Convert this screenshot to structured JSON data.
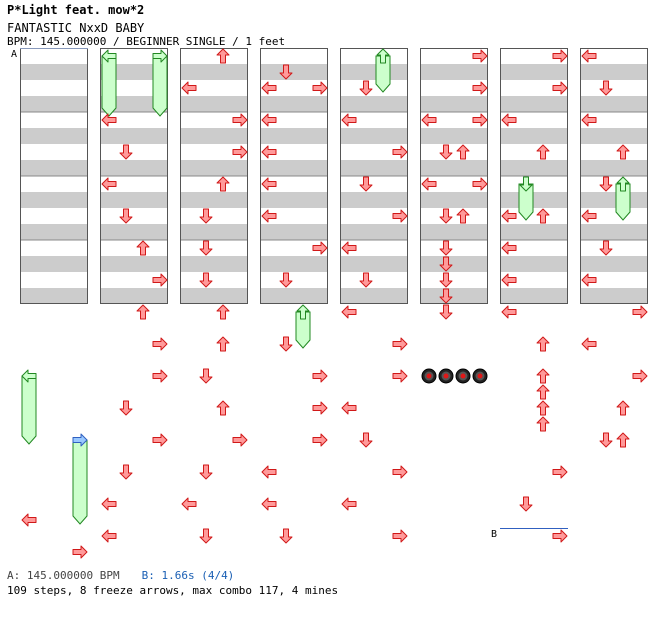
{
  "header": {
    "artist": "P*Light feat. mow*2",
    "title": "FANTASTIC NxxD BABY",
    "info": "BPM: 145.000000 / BEGINNER SINGLE / 1 feet"
  },
  "footer": {
    "bpm_text": "A: 145.000000 BPM",
    "stop_text": "B: 1.66s (4/4)",
    "stats_text": "109 steps, 8 freeze arrows, max combo 117, 4 mines"
  },
  "colors": {
    "tap": "#ff9a9a",
    "tap_stroke": "#d01818",
    "freeze": "#ccffcc",
    "freeze_stroke": "#228822",
    "stop_arrow": "#99c8ff",
    "stop_line": "#3060c0",
    "stripe": "#cccccc"
  },
  "markers": [
    {
      "label": "A",
      "col": 0,
      "beat": 0
    },
    {
      "label": "B",
      "col": 6,
      "beat": 30
    }
  ],
  "chart_data": {
    "type": "step-chart",
    "lanes": [
      "left",
      "down",
      "up",
      "right"
    ],
    "columns": 8,
    "measures_per_column": 4,
    "beats_per_measure": 4,
    "notes": [
      {
        "col": 0,
        "beat": 20,
        "lane": 0,
        "type": "freeze",
        "len": 4
      },
      {
        "col": 0,
        "beat": 24,
        "lane": 3,
        "type": "freeze",
        "len": 5,
        "stop": true
      },
      {
        "col": 0,
        "beat": 29,
        "lane": 0,
        "type": "tap"
      },
      {
        "col": 0,
        "beat": 31,
        "lane": 3,
        "type": "tap"
      },
      {
        "col": 1,
        "beat": 0,
        "lane": 0,
        "type": "freeze",
        "len": 3.5
      },
      {
        "col": 1,
        "beat": 0,
        "lane": 3,
        "type": "freeze",
        "len": 3.5
      },
      {
        "col": 1,
        "beat": 4,
        "lane": 0,
        "type": "tap"
      },
      {
        "col": 1,
        "beat": 6,
        "lane": 1,
        "type": "tap"
      },
      {
        "col": 1,
        "beat": 8,
        "lane": 0,
        "type": "tap"
      },
      {
        "col": 1,
        "beat": 10,
        "lane": 1,
        "type": "tap"
      },
      {
        "col": 1,
        "beat": 12,
        "lane": 2,
        "type": "tap"
      },
      {
        "col": 1,
        "beat": 14,
        "lane": 3,
        "type": "tap"
      },
      {
        "col": 1,
        "beat": 16,
        "lane": 2,
        "type": "tap"
      },
      {
        "col": 1,
        "beat": 18,
        "lane": 3,
        "type": "tap"
      },
      {
        "col": 1,
        "beat": 20,
        "lane": 3,
        "type": "tap"
      },
      {
        "col": 1,
        "beat": 22,
        "lane": 1,
        "type": "tap"
      },
      {
        "col": 1,
        "beat": 24,
        "lane": 3,
        "type": "tap"
      },
      {
        "col": 1,
        "beat": 26,
        "lane": 1,
        "type": "tap"
      },
      {
        "col": 1,
        "beat": 28,
        "lane": 0,
        "type": "tap"
      },
      {
        "col": 1,
        "beat": 30,
        "lane": 0,
        "type": "tap"
      },
      {
        "col": 2,
        "beat": 0,
        "lane": 2,
        "type": "tap"
      },
      {
        "col": 2,
        "beat": 2,
        "lane": 0,
        "type": "tap"
      },
      {
        "col": 2,
        "beat": 4,
        "lane": 3,
        "type": "tap"
      },
      {
        "col": 2,
        "beat": 6,
        "lane": 3,
        "type": "tap"
      },
      {
        "col": 2,
        "beat": 8,
        "lane": 2,
        "type": "tap"
      },
      {
        "col": 2,
        "beat": 10,
        "lane": 1,
        "type": "tap"
      },
      {
        "col": 2,
        "beat": 12,
        "lane": 1,
        "type": "tap"
      },
      {
        "col": 2,
        "beat": 14,
        "lane": 1,
        "type": "tap"
      },
      {
        "col": 2,
        "beat": 16,
        "lane": 2,
        "type": "tap"
      },
      {
        "col": 2,
        "beat": 18,
        "lane": 2,
        "type": "tap"
      },
      {
        "col": 2,
        "beat": 20,
        "lane": 1,
        "type": "tap"
      },
      {
        "col": 2,
        "beat": 22,
        "lane": 2,
        "type": "tap"
      },
      {
        "col": 2,
        "beat": 24,
        "lane": 3,
        "type": "tap"
      },
      {
        "col": 2,
        "beat": 26,
        "lane": 1,
        "type": "tap"
      },
      {
        "col": 2,
        "beat": 28,
        "lane": 0,
        "type": "tap"
      },
      {
        "col": 2,
        "beat": 30,
        "lane": 1,
        "type": "tap"
      },
      {
        "col": 3,
        "beat": 1,
        "lane": 1,
        "type": "tap"
      },
      {
        "col": 3,
        "beat": 2,
        "lane": 0,
        "type": "tap"
      },
      {
        "col": 3,
        "beat": 2,
        "lane": 3,
        "type": "tap"
      },
      {
        "col": 3,
        "beat": 4,
        "lane": 0,
        "type": "tap"
      },
      {
        "col": 3,
        "beat": 6,
        "lane": 0,
        "type": "tap"
      },
      {
        "col": 3,
        "beat": 8,
        "lane": 0,
        "type": "tap"
      },
      {
        "col": 3,
        "beat": 10,
        "lane": 0,
        "type": "tap"
      },
      {
        "col": 3,
        "beat": 12,
        "lane": 3,
        "type": "tap"
      },
      {
        "col": 3,
        "beat": 14,
        "lane": 1,
        "type": "tap"
      },
      {
        "col": 3,
        "beat": 16,
        "lane": 2,
        "type": "freeze",
        "len": 2
      },
      {
        "col": 3,
        "beat": 18,
        "lane": 1,
        "type": "tap"
      },
      {
        "col": 3,
        "beat": 20,
        "lane": 3,
        "type": "tap"
      },
      {
        "col": 3,
        "beat": 22,
        "lane": 3,
        "type": "tap"
      },
      {
        "col": 3,
        "beat": 24,
        "lane": 3,
        "type": "tap"
      },
      {
        "col": 3,
        "beat": 26,
        "lane": 0,
        "type": "tap"
      },
      {
        "col": 3,
        "beat": 28,
        "lane": 0,
        "type": "tap"
      },
      {
        "col": 3,
        "beat": 30,
        "lane": 1,
        "type": "tap"
      },
      {
        "col": 4,
        "beat": 0,
        "lane": 2,
        "type": "freeze",
        "len": 2
      },
      {
        "col": 4,
        "beat": 2,
        "lane": 1,
        "type": "tap"
      },
      {
        "col": 4,
        "beat": 4,
        "lane": 0,
        "type": "tap"
      },
      {
        "col": 4,
        "beat": 6,
        "lane": 3,
        "type": "tap"
      },
      {
        "col": 4,
        "beat": 8,
        "lane": 1,
        "type": "tap"
      },
      {
        "col": 4,
        "beat": 10,
        "lane": 3,
        "type": "tap"
      },
      {
        "col": 4,
        "beat": 12,
        "lane": 0,
        "type": "tap"
      },
      {
        "col": 4,
        "beat": 14,
        "lane": 1,
        "type": "tap"
      },
      {
        "col": 4,
        "beat": 16,
        "lane": 0,
        "type": "tap"
      },
      {
        "col": 4,
        "beat": 18,
        "lane": 3,
        "type": "tap"
      },
      {
        "col": 4,
        "beat": 20,
        "lane": 3,
        "type": "tap"
      },
      {
        "col": 4,
        "beat": 22,
        "lane": 0,
        "type": "tap"
      },
      {
        "col": 4,
        "beat": 24,
        "lane": 1,
        "type": "tap"
      },
      {
        "col": 4,
        "beat": 26,
        "lane": 3,
        "type": "tap"
      },
      {
        "col": 4,
        "beat": 28,
        "lane": 0,
        "type": "tap"
      },
      {
        "col": 4,
        "beat": 30,
        "lane": 3,
        "type": "tap"
      },
      {
        "col": 5,
        "beat": 0,
        "lane": 3,
        "type": "tap"
      },
      {
        "col": 5,
        "beat": 2,
        "lane": 3,
        "type": "tap"
      },
      {
        "col": 5,
        "beat": 4,
        "lane": 0,
        "type": "tap"
      },
      {
        "col": 5,
        "beat": 4,
        "lane": 3,
        "type": "tap"
      },
      {
        "col": 5,
        "beat": 6,
        "lane": 1,
        "type": "tap"
      },
      {
        "col": 5,
        "beat": 6,
        "lane": 2,
        "type": "tap"
      },
      {
        "col": 5,
        "beat": 8,
        "lane": 0,
        "type": "tap"
      },
      {
        "col": 5,
        "beat": 8,
        "lane": 3,
        "type": "tap"
      },
      {
        "col": 5,
        "beat": 10,
        "lane": 1,
        "type": "tap"
      },
      {
        "col": 5,
        "beat": 10,
        "lane": 2,
        "type": "tap"
      },
      {
        "col": 5,
        "beat": 12,
        "lane": 1,
        "type": "tap"
      },
      {
        "col": 5,
        "beat": 13,
        "lane": 1,
        "type": "tap"
      },
      {
        "col": 5,
        "beat": 14,
        "lane": 1,
        "type": "tap"
      },
      {
        "col": 5,
        "beat": 15,
        "lane": 1,
        "type": "tap"
      },
      {
        "col": 5,
        "beat": 16,
        "lane": 1,
        "type": "tap"
      },
      {
        "col": 5,
        "beat": 20,
        "lane": 0,
        "type": "mine"
      },
      {
        "col": 5,
        "beat": 20,
        "lane": 1,
        "type": "mine"
      },
      {
        "col": 5,
        "beat": 20,
        "lane": 2,
        "type": "mine"
      },
      {
        "col": 5,
        "beat": 20,
        "lane": 3,
        "type": "mine"
      },
      {
        "col": 6,
        "beat": 0,
        "lane": 3,
        "type": "tap"
      },
      {
        "col": 6,
        "beat": 2,
        "lane": 3,
        "type": "tap"
      },
      {
        "col": 6,
        "beat": 4,
        "lane": 0,
        "type": "tap"
      },
      {
        "col": 6,
        "beat": 6,
        "lane": 2,
        "type": "tap"
      },
      {
        "col": 6,
        "beat": 8,
        "lane": 1,
        "type": "freeze",
        "len": 2
      },
      {
        "col": 6,
        "beat": 10,
        "lane": 0,
        "type": "tap"
      },
      {
        "col": 6,
        "beat": 10,
        "lane": 2,
        "type": "tap"
      },
      {
        "col": 6,
        "beat": 12,
        "lane": 0,
        "type": "tap"
      },
      {
        "col": 6,
        "beat": 14,
        "lane": 0,
        "type": "tap"
      },
      {
        "col": 6,
        "beat": 16,
        "lane": 0,
        "type": "tap"
      },
      {
        "col": 6,
        "beat": 18,
        "lane": 2,
        "type": "tap"
      },
      {
        "col": 6,
        "beat": 20,
        "lane": 2,
        "type": "tap"
      },
      {
        "col": 6,
        "beat": 21,
        "lane": 2,
        "type": "tap"
      },
      {
        "col": 6,
        "beat": 22,
        "lane": 2,
        "type": "tap"
      },
      {
        "col": 6,
        "beat": 23,
        "lane": 2,
        "type": "tap"
      },
      {
        "col": 6,
        "beat": 26,
        "lane": 3,
        "type": "tap"
      },
      {
        "col": 6,
        "beat": 28,
        "lane": 1,
        "type": "tap"
      },
      {
        "col": 6,
        "beat": 30,
        "lane": 3,
        "type": "tap"
      },
      {
        "col": 7,
        "beat": 0,
        "lane": 0,
        "type": "tap"
      },
      {
        "col": 7,
        "beat": 2,
        "lane": 1,
        "type": "tap"
      },
      {
        "col": 7,
        "beat": 4,
        "lane": 0,
        "type": "tap"
      },
      {
        "col": 7,
        "beat": 6,
        "lane": 2,
        "type": "tap"
      },
      {
        "col": 7,
        "beat": 8,
        "lane": 1,
        "type": "tap"
      },
      {
        "col": 7,
        "beat": 8,
        "lane": 2,
        "type": "freeze",
        "len": 2
      },
      {
        "col": 7,
        "beat": 10,
        "lane": 0,
        "type": "tap"
      },
      {
        "col": 7,
        "beat": 12,
        "lane": 1,
        "type": "tap"
      },
      {
        "col": 7,
        "beat": 14,
        "lane": 0,
        "type": "tap"
      },
      {
        "col": 7,
        "beat": 16,
        "lane": 3,
        "type": "tap"
      },
      {
        "col": 7,
        "beat": 18,
        "lane": 0,
        "type": "tap"
      },
      {
        "col": 7,
        "beat": 20,
        "lane": 3,
        "type": "tap"
      },
      {
        "col": 7,
        "beat": 22,
        "lane": 2,
        "type": "tap"
      },
      {
        "col": 7,
        "beat": 24,
        "lane": 1,
        "type": "tap"
      },
      {
        "col": 7,
        "beat": 24,
        "lane": 2,
        "type": "tap"
      }
    ]
  }
}
